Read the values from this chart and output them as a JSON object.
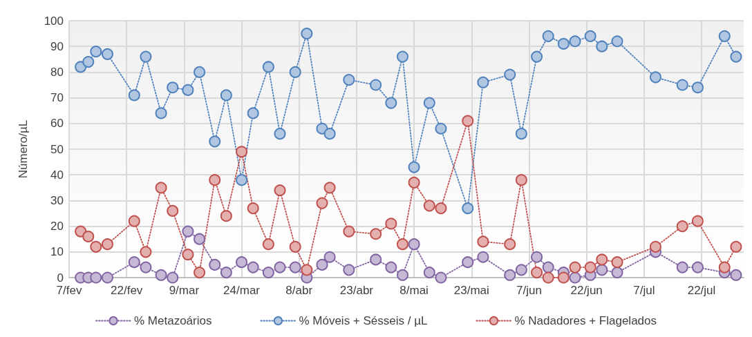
{
  "chart_data": {
    "type": "line",
    "ylabel": "Número/µL",
    "x": [
      "--02-10",
      "--02-12",
      "--02-14",
      "--02-17",
      "--02-24",
      "--02-27",
      "--03-03",
      "--03-06",
      "--03-10",
      "--03-13",
      "--03-17",
      "--03-20",
      "--03-24",
      "--03-27",
      "--03-31",
      "--04-03",
      "--04-07",
      "--04-10",
      "--04-14",
      "--04-16",
      "--04-21",
      "--04-28",
      "--05-02",
      "--05-05",
      "--05-08",
      "--05-12",
      "--05-15",
      "--05-22",
      "--05-26",
      "--06-02",
      "--06-05",
      "--06-09",
      "--06-12",
      "--06-16",
      "--06-19",
      "--06-23",
      "--06-26",
      "--06-30",
      "--07-10",
      "--07-17",
      "--07-21",
      "--07-28",
      "--07-31"
    ],
    "series": [
      {
        "name": "% Metazoários",
        "color": "#8064a2",
        "values": [
          0,
          0,
          0,
          0,
          6,
          4,
          1,
          0,
          18,
          15,
          5,
          2,
          6,
          4,
          2,
          4,
          4,
          0,
          5,
          8,
          3,
          7,
          4,
          1,
          13,
          2,
          0,
          6,
          8,
          1,
          3,
          8,
          4,
          2,
          0,
          1,
          3,
          2,
          10,
          4,
          4,
          2,
          1
        ]
      },
      {
        "name": "% Móveis + Sésseis / µL",
        "color": "#4f81bd",
        "values": [
          82,
          84,
          88,
          87,
          71,
          86,
          64,
          74,
          73,
          80,
          53,
          71,
          38,
          64,
          82,
          56,
          80,
          95,
          58,
          56,
          77,
          75,
          68,
          86,
          43,
          68,
          58,
          27,
          76,
          79,
          56,
          86,
          94,
          91,
          92,
          94,
          90,
          92,
          78,
          75,
          74,
          94,
          86
        ]
      },
      {
        "name": "% Nadadores + Flagelados",
        "color": "#c0504d",
        "values": [
          18,
          16,
          12,
          13,
          22,
          10,
          35,
          26,
          9,
          2,
          38,
          24,
          49,
          27,
          13,
          34,
          12,
          3,
          29,
          35,
          18,
          17,
          21,
          13,
          37,
          28,
          27,
          61,
          14,
          13,
          38,
          2,
          0,
          0,
          4,
          4,
          7,
          6,
          12,
          20,
          22,
          4,
          12
        ]
      }
    ],
    "xlim": [
      "--02-07",
      "--08-02"
    ],
    "xticks": [
      {
        "value": "--02-07",
        "label": "7/fev"
      },
      {
        "value": "--02-22",
        "label": "22/fev"
      },
      {
        "value": "--03-09",
        "label": "9/mar"
      },
      {
        "value": "--03-24",
        "label": "24/mar"
      },
      {
        "value": "--04-08",
        "label": "8/abr"
      },
      {
        "value": "--04-23",
        "label": "23/abr"
      },
      {
        "value": "--05-08",
        "label": "8/mai"
      },
      {
        "value": "--05-23",
        "label": "23/mai"
      },
      {
        "value": "--06-07",
        "label": "7/jun"
      },
      {
        "value": "--06-22",
        "label": "22/jun"
      },
      {
        "value": "--07-07",
        "label": "7/jul"
      },
      {
        "value": "--07-22",
        "label": "22/jul"
      }
    ],
    "ylim": [
      0,
      100
    ],
    "yticks": [
      0,
      10,
      20,
      30,
      40,
      50,
      60,
      70,
      80,
      90,
      100
    ],
    "grid": true,
    "legend": "bottom",
    "marker": "circle",
    "line_style": "dotted"
  }
}
